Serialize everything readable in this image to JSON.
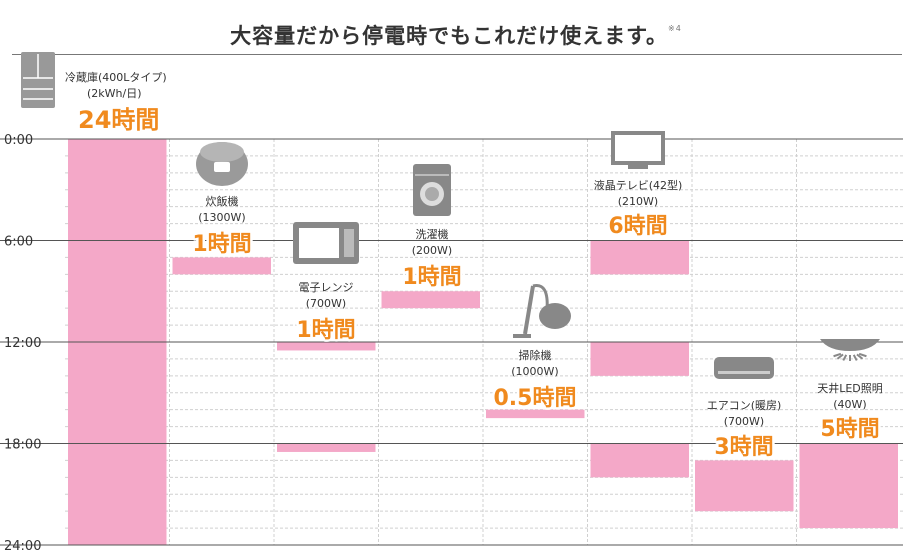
{
  "heading": {
    "text": "大容量だから停電時でもこれだけ使えます。",
    "note": "※4"
  },
  "colors": {
    "bar": "#f4a8c8",
    "hours": "#f08a1e",
    "grid_major": "#555555",
    "grid_minor": "#d0d0d0",
    "icon": "#888888"
  },
  "chart_data": {
    "type": "bar",
    "orientation": "vertical-time",
    "ylim": [
      0,
      24
    ],
    "yticks": [
      "0:00",
      "6:00",
      "12:00",
      "18:00",
      "24:00"
    ],
    "ytick_values": [
      0,
      6,
      12,
      18,
      24
    ],
    "categories": [
      {
        "name": "冷蔵庫(400Lタイプ)",
        "power": "(2kWh/日)",
        "hours_label": "24時間",
        "icon": "fridge-icon",
        "segments": [
          [
            0,
            24
          ]
        ]
      },
      {
        "name": "炊飯機",
        "power": "(1300W)",
        "hours_label": "1時間",
        "icon": "rice-cooker-icon",
        "segments": [
          [
            7,
            8
          ]
        ]
      },
      {
        "name": "電子レンジ",
        "power": "(700W)",
        "hours_label": "1時間",
        "icon": "microwave-icon",
        "segments": [
          [
            12,
            12.5
          ],
          [
            18,
            18.5
          ]
        ]
      },
      {
        "name": "洗濯機",
        "power": "(200W)",
        "hours_label": "1時間",
        "icon": "washing-machine-icon",
        "segments": [
          [
            9,
            10
          ]
        ]
      },
      {
        "name": "掃除機",
        "power": "(1000W)",
        "hours_label": "0.5時間",
        "icon": "vacuum-icon",
        "segments": [
          [
            16,
            16.5
          ]
        ]
      },
      {
        "name": "液晶テレビ(42型)",
        "power": "(210W)",
        "hours_label": "6時間",
        "icon": "tv-icon",
        "segments": [
          [
            6,
            8
          ],
          [
            12,
            14
          ],
          [
            18,
            20
          ]
        ]
      },
      {
        "name": "エアコン(暖房)",
        "power": "(700W)",
        "hours_label": "3時間",
        "icon": "air-conditioner-icon",
        "segments": [
          [
            19,
            22
          ]
        ]
      },
      {
        "name": "天井LED照明",
        "power": "(40W)",
        "hours_label": "5時間",
        "icon": "ceiling-light-icon",
        "segments": [
          [
            18,
            23
          ]
        ]
      }
    ]
  }
}
